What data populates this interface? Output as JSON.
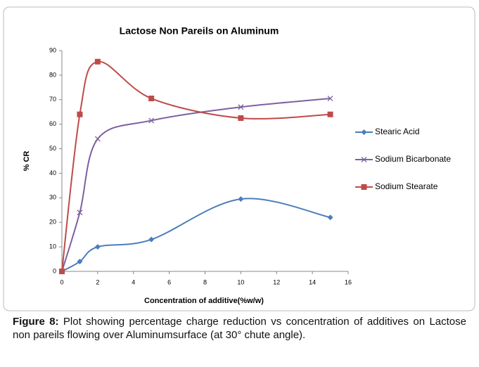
{
  "chart_data": {
    "type": "line",
    "title": "Lactose Non Pareils on Aluminum",
    "x_label": "Concentration of additive(%w/w)",
    "y_label": "% CR",
    "x": [
      0,
      1,
      2,
      5,
      10,
      15
    ],
    "series": [
      {
        "name": "Stearic Acid",
        "color": "#4a7ebb",
        "marker": "diamond",
        "values": [
          0,
          4,
          10,
          13,
          29.5,
          22
        ]
      },
      {
        "name": "Sodium Bicarbonate",
        "color": "#7d60a0",
        "marker": "x",
        "values": [
          0,
          24,
          54,
          61.5,
          67,
          70.5
        ]
      },
      {
        "name": "Sodium Stearate",
        "color": "#be4b48",
        "marker": "square",
        "values": [
          0,
          64,
          85.5,
          70.5,
          62.5,
          64
        ]
      }
    ],
    "xlim": [
      0,
      16
    ],
    "xticks": [
      0,
      2,
      4,
      6,
      8,
      10,
      12,
      14,
      16
    ],
    "ylim": [
      0,
      90
    ],
    "yticks": [
      0,
      10,
      20,
      30,
      40,
      50,
      60,
      70,
      80,
      90
    ],
    "smooth": true,
    "grid": false,
    "legend": "right"
  },
  "caption": {
    "label": "Figure 8:",
    "text": "Plot showing percentage charge reduction vs concentration of additives on Lactose non pareils flowing over Aluminumsurface (at 30° chute angle)."
  }
}
